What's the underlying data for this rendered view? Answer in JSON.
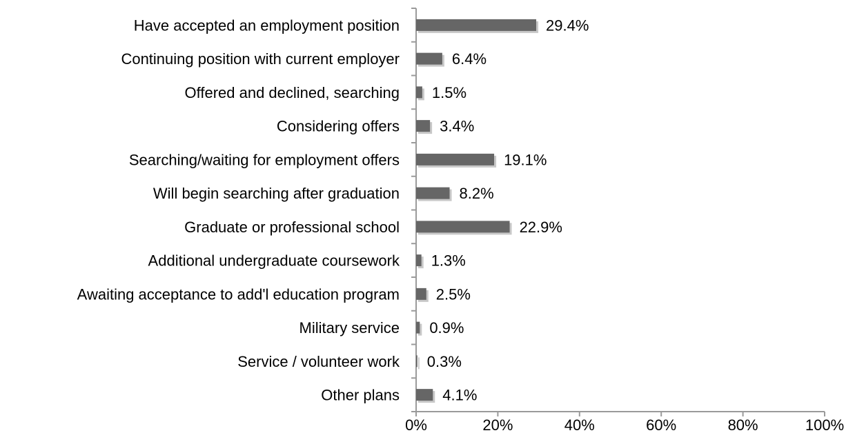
{
  "chart_data": {
    "type": "bar",
    "orientation": "horizontal",
    "title": "",
    "xlabel": "",
    "ylabel": "",
    "categories": [
      "Have accepted an employment position",
      "Continuing position with current employer",
      "Offered and declined, searching",
      "Considering offers",
      "Searching/waiting for employment offers",
      "Will begin searching after graduation",
      "Graduate or professional school",
      "Additional undergraduate coursework",
      "Awaiting acceptance to add'l education program",
      "Military service",
      "Service / volunteer work",
      "Other plans"
    ],
    "values": [
      29.4,
      6.4,
      1.5,
      3.4,
      19.1,
      8.2,
      22.9,
      1.3,
      2.5,
      0.9,
      0.3,
      4.1
    ],
    "value_labels": [
      "29.4%",
      "6.4%",
      "1.5%",
      "3.4%",
      "19.1%",
      "8.2%",
      "22.9%",
      "1.3%",
      "2.5%",
      "0.9%",
      "0.3%",
      "4.1%"
    ],
    "xlim": [
      0,
      100
    ],
    "xticks": [
      0,
      20,
      40,
      60,
      80,
      100
    ],
    "xtick_labels": [
      "0%",
      "20%",
      "40%",
      "60%",
      "80%",
      "100%"
    ],
    "grid": false,
    "legend": "none",
    "colors": {
      "bar": "#666666",
      "bar_shadow": "#c8c8c8",
      "axis": "#9a9a9a"
    }
  }
}
